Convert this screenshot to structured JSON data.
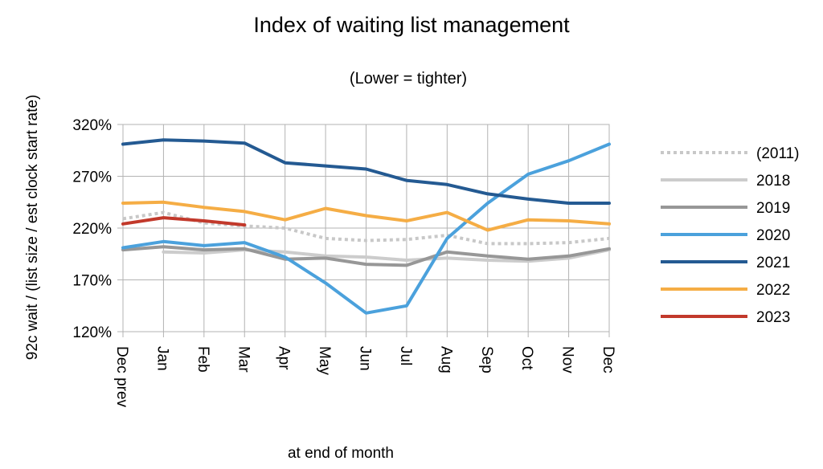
{
  "chart_data": {
    "type": "line",
    "title": "Index of waiting list management",
    "subtitle": "(Lower = tighter)",
    "xlabel": "at end of month",
    "ylabel": "92c wait / (list size / est clock start rate)",
    "categories": [
      "Dec prev",
      "Jan",
      "Feb",
      "Mar",
      "Apr",
      "May",
      "Jun",
      "Jul",
      "Aug",
      "Sep",
      "Oct",
      "Nov",
      "Dec"
    ],
    "yticks": [
      "120%",
      "170%",
      "220%",
      "270%",
      "320%"
    ],
    "ylim": [
      120,
      320
    ],
    "grid": true,
    "legend_position": "right",
    "series": [
      {
        "name": "(2011)",
        "color": "#c8c8c8",
        "style": "dotted",
        "values": [
          229,
          235,
          225,
          222,
          220,
          210,
          208,
          209,
          213,
          205,
          205,
          206,
          210
        ]
      },
      {
        "name": "2018",
        "color": "#cccccc",
        "style": "solid",
        "values": [
          null,
          197,
          196,
          199,
          197,
          193,
          192,
          189,
          191,
          189,
          188,
          191,
          199
        ]
      },
      {
        "name": "2019",
        "color": "#979797",
        "style": "solid",
        "values": [
          199,
          202,
          199,
          200,
          190,
          191,
          185,
          184,
          197,
          193,
          190,
          193,
          200
        ]
      },
      {
        "name": "2020",
        "color": "#4ba1dc",
        "style": "solid",
        "values": [
          201,
          207,
          203,
          206,
          192,
          167,
          138,
          145,
          210,
          244,
          272,
          285,
          301
        ]
      },
      {
        "name": "2021",
        "color": "#245a92",
        "style": "solid",
        "values": [
          301,
          305,
          304,
          302,
          283,
          280,
          277,
          266,
          262,
          253,
          248,
          244,
          244
        ]
      },
      {
        "name": "2022",
        "color": "#f5ad45",
        "style": "solid",
        "values": [
          244,
          245,
          240,
          236,
          228,
          239,
          232,
          227,
          235,
          218,
          228,
          227,
          224
        ]
      },
      {
        "name": "2023",
        "color": "#c2392b",
        "style": "solid",
        "values": [
          224,
          230,
          227,
          223,
          null,
          null,
          null,
          null,
          null,
          null,
          null,
          null,
          null
        ]
      }
    ]
  }
}
